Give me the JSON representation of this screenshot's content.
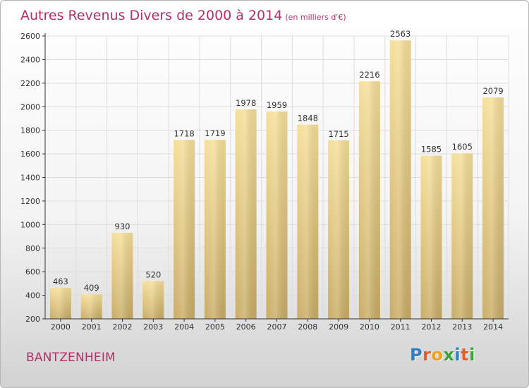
{
  "chart_data": {
    "type": "bar",
    "title": "Autres Revenus Divers de 2000 à 2014",
    "unit_note": "(en milliers d'€)",
    "xlabel": "",
    "ylabel": "",
    "categories": [
      "2000",
      "2001",
      "2002",
      "2003",
      "2004",
      "2005",
      "2006",
      "2007",
      "2008",
      "2009",
      "2010",
      "2011",
      "2012",
      "2013",
      "2014"
    ],
    "values": [
      463,
      409,
      930,
      520,
      1718,
      1719,
      1978,
      1959,
      1848,
      1715,
      2216,
      2563,
      1585,
      1605,
      2079
    ],
    "value_labels": [
      "463",
      "409",
      "930",
      "520",
      "1718",
      "1719",
      "1978",
      "1959",
      "1848",
      "1715",
      "2216",
      "2563",
      "1585",
      "1605",
      "2079"
    ],
    "ylim": [
      200,
      2600
    ],
    "yticks": [
      200,
      400,
      600,
      800,
      1000,
      1200,
      1400,
      1600,
      1800,
      2000,
      2200,
      2400,
      2600
    ],
    "ytick_labels": [
      "200",
      "400",
      "600",
      "800",
      "1000",
      "1200",
      "1400",
      "1600",
      "1800",
      "2000",
      "2200",
      "2400",
      "2600"
    ],
    "grid": true,
    "legend": "none"
  },
  "footer": {
    "place_name": "BANTZENHEIM",
    "logo_letters": [
      "P",
      "r",
      "o",
      "x",
      "i",
      "t",
      "i"
    ],
    "logo_colors": [
      "#2f7fc4",
      "#e5592a",
      "#f2a01b",
      "#3aa63c",
      "#2f7fc4",
      "#e5592a",
      "#3aa63c"
    ]
  },
  "colors": {
    "title": "#b3306a",
    "bar_light": "#f6df9a",
    "bar_dark": "#c9ad66",
    "grid": "#dddddd",
    "axis": "#333333"
  }
}
